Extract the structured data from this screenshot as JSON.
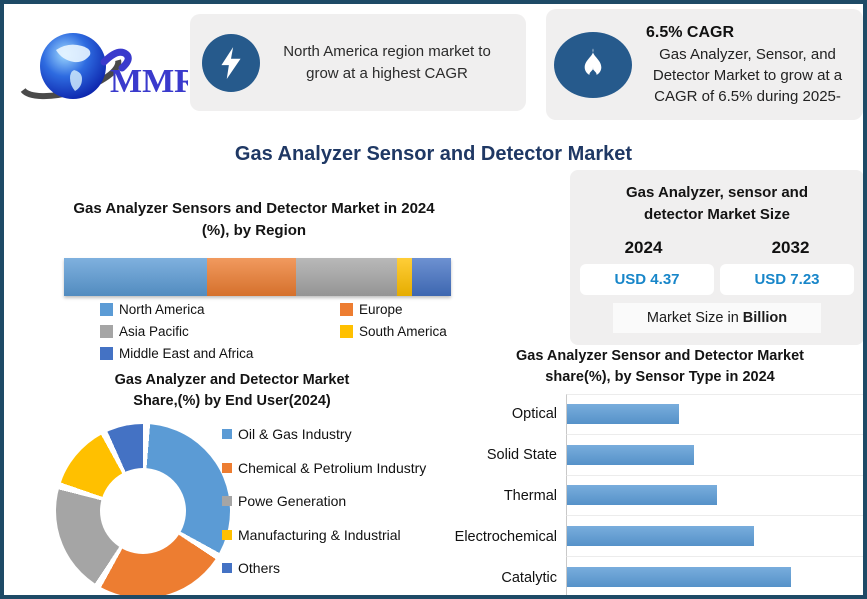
{
  "logo": {
    "text": "MMR"
  },
  "highlights": [
    {
      "icon": "lightning-icon",
      "text": "North America region market to grow at a highest CAGR"
    },
    {
      "icon": "flame-icon",
      "heading": "6.5% CAGR",
      "text": "Gas Analyzer, Sensor, and Detector Market to grow at a CAGR of 6.5% during 2025-"
    }
  ],
  "main_title": "Gas Analyzer Sensor and Detector Market",
  "market_size": {
    "title": "Gas Analyzer, sensor and detector Market Size",
    "title_lines": [
      "Gas Analyzer, sensor and",
      "detector Market Size"
    ],
    "years": [
      "2024",
      "2032"
    ],
    "values": [
      "USD 4.37",
      "USD 7.23"
    ],
    "value_color": "#1886C9",
    "note_prefix": "Market Size in ",
    "note_bold": "Billion"
  },
  "chart_data": [
    {
      "type": "bar",
      "subtype": "stacked-horizontal",
      "title": "Gas Analyzer Sensors and Detector Market in 2024 (%), by Region",
      "title_lines": [
        "Gas Analyzer Sensors and Detector Market in 2024",
        "(%), by Region"
      ],
      "categories": [
        "North America",
        "Europe",
        "Asia Pacific",
        "South America",
        "Middle East and Africa"
      ],
      "values": [
        37,
        23,
        26,
        4,
        10
      ],
      "colors": [
        "#5B9BD5",
        "#ED7D31",
        "#A5A5A5",
        "#FFC000",
        "#4472C4"
      ],
      "legend_position": "bottom",
      "unit": "%"
    },
    {
      "type": "pie",
      "subtype": "donut",
      "title": "Gas Analyzer and Detector Market Share,(%) by End User(2024)",
      "title_lines": [
        "Gas Analyzer and Detector Market",
        "Share,(%) by End User(2024)"
      ],
      "categories": [
        "Oil & Gas Industry",
        "Chemical & Petrolium Industry",
        "Powe Generation",
        "Manufacturing & Industrial",
        "Others"
      ],
      "values": [
        33,
        25,
        21,
        13,
        8
      ],
      "colors": [
        "#5B9BD5",
        "#ED7D31",
        "#A5A5A5",
        "#FFC000",
        "#4472C4"
      ],
      "legend_position": "right",
      "unit": "%"
    },
    {
      "type": "bar",
      "subtype": "horizontal",
      "title": "Gas Analyzer Sensor and Detector Market share(%), by Sensor Type in 2024",
      "title_lines": [
        "Gas Analyzer Sensor and Detector Market",
        "share(%), by Sensor Type in 2024"
      ],
      "categories": [
        "Optical",
        "Solid State",
        "Thermal",
        "Electrochemical",
        "Catalytic"
      ],
      "values": [
        15,
        17,
        20,
        25,
        30
      ],
      "xlim": [
        0,
        40
      ],
      "color": "#5B9BD5",
      "grid": false,
      "unit": "%"
    }
  ]
}
